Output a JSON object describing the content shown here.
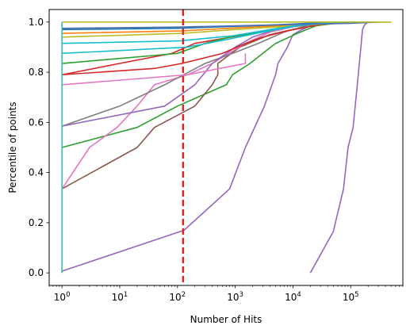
{
  "chart_data": {
    "type": "line",
    "xlabel": "Number of Hits",
    "ylabel": "Percentile of points",
    "xscale": "log",
    "xlim": [
      0.6,
      800000
    ],
    "ylim": [
      -0.05,
      1.05
    ],
    "grid": false,
    "legend": "none",
    "x_ticks": [
      {
        "value": 1,
        "base": "10",
        "exp": "0"
      },
      {
        "value": 10,
        "base": "10",
        "exp": "1"
      },
      {
        "value": 100,
        "base": "10",
        "exp": "2"
      },
      {
        "value": 1000,
        "base": "10",
        "exp": "3"
      },
      {
        "value": 10000,
        "base": "10",
        "exp": "4"
      },
      {
        "value": 100000,
        "base": "10",
        "exp": "5"
      }
    ],
    "y_ticks": [
      {
        "value": 0.0,
        "label": "0.0"
      },
      {
        "value": 0.2,
        "label": "0.2"
      },
      {
        "value": 0.4,
        "label": "0.4"
      },
      {
        "value": 0.6,
        "label": "0.6"
      },
      {
        "value": 0.8,
        "label": "0.8"
      },
      {
        "value": 1.0,
        "label": "1.0"
      }
    ],
    "threshold": {
      "x": 125,
      "color": "#e8211f",
      "style": "dashed"
    },
    "series": [
      {
        "color": "#9467bd",
        "points": [
          [
            1,
            0
          ],
          [
            1,
            0.007
          ],
          [
            130,
            0.17
          ],
          [
            800,
            0.335
          ],
          [
            1500,
            0.5
          ],
          [
            3200,
            0.665
          ],
          [
            5000,
            0.79
          ],
          [
            5500,
            0.835
          ],
          [
            8000,
            0.9
          ],
          [
            10000,
            0.95
          ],
          [
            13000,
            0.965
          ],
          [
            20000,
            0.985
          ],
          [
            100000,
            1.0
          ]
        ]
      },
      {
        "color": "#9467bd",
        "points": [
          [
            20000,
            0
          ],
          [
            50000,
            0.165
          ],
          [
            75000,
            0.335
          ],
          [
            90000,
            0.5
          ],
          [
            110000,
            0.58
          ],
          [
            130000,
            0.75
          ],
          [
            150000,
            0.9
          ],
          [
            160000,
            0.97
          ],
          [
            175000,
            0.99
          ],
          [
            200000,
            1.0
          ]
        ]
      },
      {
        "color": "#2ca02c",
        "points": [
          [
            1,
            0.5
          ],
          [
            20,
            0.58
          ],
          [
            100,
            0.665
          ],
          [
            700,
            0.75
          ],
          [
            900,
            0.79
          ],
          [
            1800,
            0.835
          ],
          [
            5000,
            0.915
          ],
          [
            12000,
            0.955
          ],
          [
            25000,
            0.985
          ],
          [
            60000,
            0.997
          ],
          [
            120000,
            1.0
          ]
        ]
      },
      {
        "color": "#8c564b",
        "points": [
          [
            1,
            0.335
          ],
          [
            20,
            0.5
          ],
          [
            40,
            0.58
          ],
          [
            200,
            0.665
          ],
          [
            400,
            0.75
          ],
          [
            500,
            0.79
          ],
          [
            500,
            0.835
          ],
          [
            1200,
            0.9
          ],
          [
            4000,
            0.95
          ],
          [
            12000,
            0.975
          ],
          [
            30000,
            0.99
          ],
          [
            70000,
            1.0
          ]
        ]
      },
      {
        "color": "#e377c2",
        "points": [
          [
            1,
            0.335
          ],
          [
            3,
            0.5
          ],
          [
            9,
            0.58
          ],
          [
            20,
            0.665
          ],
          [
            40,
            0.75
          ],
          [
            150,
            0.79
          ],
          [
            400,
            0.835
          ],
          [
            1500,
            0.915
          ],
          [
            4000,
            0.96
          ],
          [
            12000,
            0.985
          ],
          [
            20000,
            1.0
          ]
        ]
      },
      {
        "color": "#7f7f7f",
        "points": [
          [
            1,
            0.585
          ],
          [
            10,
            0.665
          ],
          [
            60,
            0.75
          ],
          [
            300,
            0.835
          ],
          [
            900,
            0.875
          ],
          [
            2500,
            0.915
          ],
          [
            7000,
            0.96
          ],
          [
            20000,
            0.99
          ],
          [
            60000,
            1.0
          ]
        ]
      },
      {
        "color": "#9467bd",
        "points": [
          [
            1,
            0.585
          ],
          [
            60,
            0.665
          ],
          [
            200,
            0.75
          ],
          [
            400,
            0.835
          ],
          [
            1000,
            0.9
          ],
          [
            2000,
            0.94
          ],
          [
            5000,
            0.97
          ],
          [
            10000,
            0.99
          ],
          [
            50000,
            1.0
          ]
        ]
      },
      {
        "color": "#d62728",
        "points": [
          [
            1,
            0.79
          ],
          [
            10,
            0.835
          ],
          [
            80,
            0.875
          ],
          [
            200,
            0.915
          ],
          [
            1500,
            0.95
          ],
          [
            4000,
            0.97
          ],
          [
            20000,
            0.99
          ],
          [
            80000,
            1.0
          ]
        ]
      },
      {
        "color": "#d62728",
        "points": [
          [
            1,
            0.79
          ],
          [
            40,
            0.815
          ],
          [
            120,
            0.835
          ],
          [
            600,
            0.875
          ],
          [
            1500,
            0.915
          ],
          [
            3000,
            0.94
          ],
          [
            8000,
            0.965
          ],
          [
            30000,
            0.99
          ],
          [
            100000,
            1.0
          ]
        ]
      },
      {
        "color": "#2ca02c",
        "points": [
          [
            1,
            0.835
          ],
          [
            100,
            0.875
          ],
          [
            300,
            0.915
          ],
          [
            800,
            0.94
          ],
          [
            2500,
            0.96
          ],
          [
            7000,
            0.98
          ],
          [
            20000,
            0.99
          ],
          [
            90000,
            1.0
          ]
        ]
      },
      {
        "color": "#e377c2",
        "points": [
          [
            1,
            0.75
          ],
          [
            150,
            0.79
          ],
          [
            1500,
            0.835
          ],
          [
            1500,
            0.875
          ]
        ]
      },
      {
        "color": "#ff7f0e",
        "points": [
          [
            1,
            0.955
          ],
          [
            120,
            0.965
          ],
          [
            800,
            0.975
          ],
          [
            5000,
            0.985
          ],
          [
            30000,
            0.995
          ],
          [
            150000,
            1.0
          ],
          [
            500000,
            1.0
          ]
        ]
      },
      {
        "color": "#bcbd22",
        "points": [
          [
            1,
            0.94
          ],
          [
            120,
            0.955
          ],
          [
            1000,
            0.97
          ],
          [
            10000,
            0.985
          ],
          [
            60000,
            0.995
          ],
          [
            250000,
            1.0
          ]
        ]
      },
      {
        "color": "#1f77b4",
        "points": [
          [
            1,
            0.97
          ],
          [
            100,
            0.975
          ],
          [
            2000,
            0.985
          ],
          [
            20000,
            0.995
          ],
          [
            150000,
            1.0
          ]
        ]
      },
      {
        "color": "#17becf",
        "points": [
          [
            1,
            0.915
          ],
          [
            110,
            0.925
          ],
          [
            900,
            0.945
          ],
          [
            4000,
            0.97
          ],
          [
            15000,
            0.99
          ],
          [
            80000,
            1.0
          ]
        ]
      },
      {
        "color": "#17becf",
        "points": [
          [
            1,
            0.875
          ],
          [
            150,
            0.9
          ],
          [
            700,
            0.93
          ],
          [
            3000,
            0.96
          ],
          [
            12000,
            0.985
          ],
          [
            60000,
            1.0
          ]
        ]
      },
      {
        "color": "#4c72b0",
        "points": [
          [
            1,
            0.975
          ],
          [
            100,
            0.98
          ],
          [
            1000,
            0.985
          ],
          [
            10000,
            0.99
          ],
          [
            100000,
            0.995
          ],
          [
            300000,
            1.0
          ]
        ]
      },
      {
        "color": "#bcbd22",
        "points": [
          [
            1,
            1.0
          ],
          [
            500000,
            1.0
          ]
        ]
      },
      {
        "color": "#4cb8a8",
        "points": [
          [
            1,
            0
          ],
          [
            1,
            1.0
          ]
        ]
      }
    ]
  }
}
